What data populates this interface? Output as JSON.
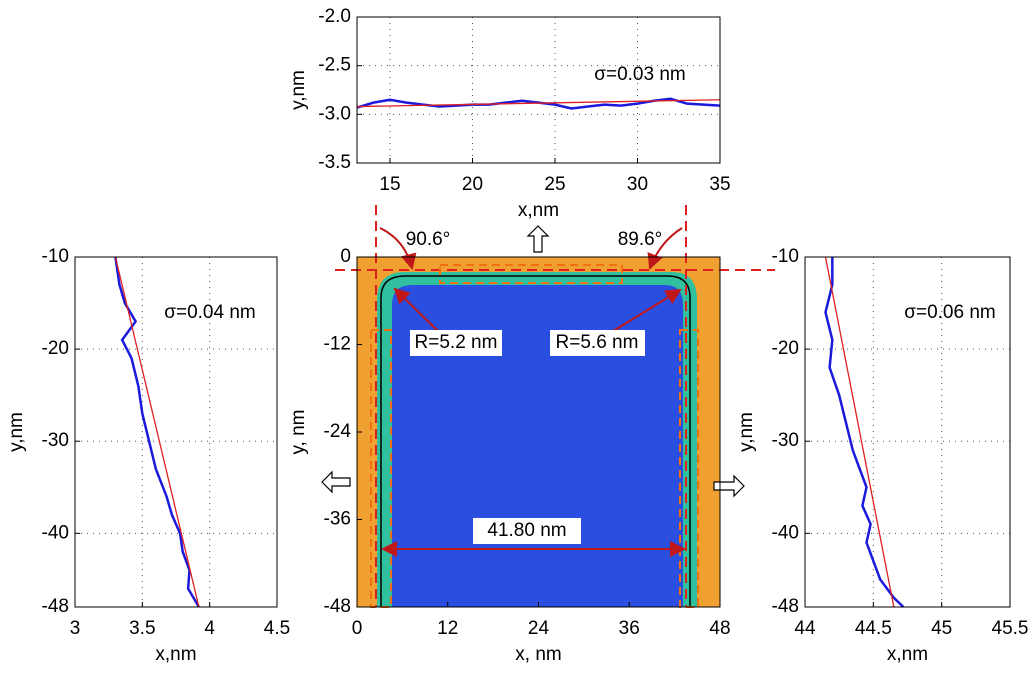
{
  "chart_data": [
    {
      "type": "line",
      "x_label": "x,nm",
      "y_label": "y,nm",
      "xlim": [
        13,
        35
      ],
      "ylim": [
        -3.5,
        -2.0
      ],
      "xticks": [
        15,
        20,
        25,
        30,
        35
      ],
      "yticks": [
        -3.5,
        {
          "value": -3,
          "label": "-3.0"
        },
        -2.5,
        {
          "value": -2,
          "label": "-2.0"
        }
      ],
      "grid": true,
      "annotations": [
        "σ=0.03 nm"
      ],
      "series": [
        {
          "color": "#1a1adc",
          "x": [
            13,
            14,
            15,
            16,
            17,
            18,
            19,
            20,
            21,
            22,
            23,
            24,
            25,
            26,
            27,
            28,
            29,
            30,
            31,
            32,
            33,
            34,
            35
          ],
          "values": [
            -2.93,
            -2.88,
            -2.85,
            -2.88,
            -2.9,
            -2.92,
            -2.91,
            -2.9,
            -2.9,
            -2.88,
            -2.86,
            -2.88,
            -2.9,
            -2.94,
            -2.92,
            -2.9,
            -2.91,
            -2.89,
            -2.86,
            -2.84,
            -2.89,
            -2.9,
            -2.91
          ]
        },
        {
          "color": "#e02020",
          "x": [
            13,
            35
          ],
          "values": [
            -2.92,
            -2.85
          ]
        }
      ]
    },
    {
      "type": "line",
      "x_label": "x,nm",
      "y_label": "y,nm",
      "xlim": [
        3,
        4.5
      ],
      "ylim": [
        -48,
        -10
      ],
      "xticks": [
        3,
        3.5,
        4,
        4.5
      ],
      "yticks": [
        -10,
        -20,
        -30,
        -40,
        -48
      ],
      "grid": true,
      "annotations": [
        "σ=0.04 nm"
      ],
      "series": [
        {
          "color": "#1a1adc",
          "x": [
            3.3,
            3.33,
            3.37,
            3.45,
            3.35,
            3.42,
            3.47,
            3.5,
            3.55,
            3.6,
            3.68,
            3.72,
            3.78,
            3.8,
            3.85,
            3.84,
            3.92
          ],
          "values": [
            -10,
            -13,
            -15,
            -17,
            -19,
            -21,
            -24,
            -27,
            -30,
            -33,
            -36,
            -38,
            -40,
            -42,
            -44,
            -46,
            -48
          ]
        },
        {
          "color": "#e02020",
          "x": [
            3.3,
            3.92
          ],
          "values": [
            -10,
            -48
          ]
        }
      ]
    },
    {
      "type": "image",
      "x_label": "x, nm",
      "y_label": "y, nm",
      "xlim": [
        0,
        48
      ],
      "ylim": [
        -48,
        0
      ],
      "xticks": [
        0,
        12,
        24,
        36,
        48
      ],
      "yticks": [
        0,
        -12,
        -24,
        -36,
        -48
      ],
      "annotations": [
        "90.6°",
        "89.6°",
        "R=5.2 nm",
        "R=5.6 nm",
        "41.80 nm"
      ]
    },
    {
      "type": "line",
      "x_label": "x,nm",
      "y_label": "y,nm",
      "xlim": [
        44,
        45.5
      ],
      "ylim": [
        -48,
        -10
      ],
      "xticks": [
        44,
        44.5,
        45,
        45.5
      ],
      "yticks": [
        -10,
        -20,
        -30,
        -40,
        -48
      ],
      "grid": true,
      "annotations": [
        "σ=0.06 nm"
      ],
      "series": [
        {
          "color": "#1a1adc",
          "x": [
            44.2,
            44.2,
            44.15,
            44.2,
            44.18,
            44.25,
            44.3,
            44.35,
            44.4,
            44.45,
            44.42,
            44.48,
            44.45,
            44.5,
            44.55,
            44.65,
            44.72
          ],
          "values": [
            -10,
            -13,
            -16,
            -19,
            -22,
            -25,
            -28,
            -31,
            -33,
            -35,
            -37,
            -39,
            -41,
            -43,
            -45,
            -47,
            -48
          ]
        },
        {
          "color": "#e02020",
          "x": [
            44.15,
            44.65
          ],
          "values": [
            -10,
            -48
          ]
        }
      ]
    }
  ]
}
